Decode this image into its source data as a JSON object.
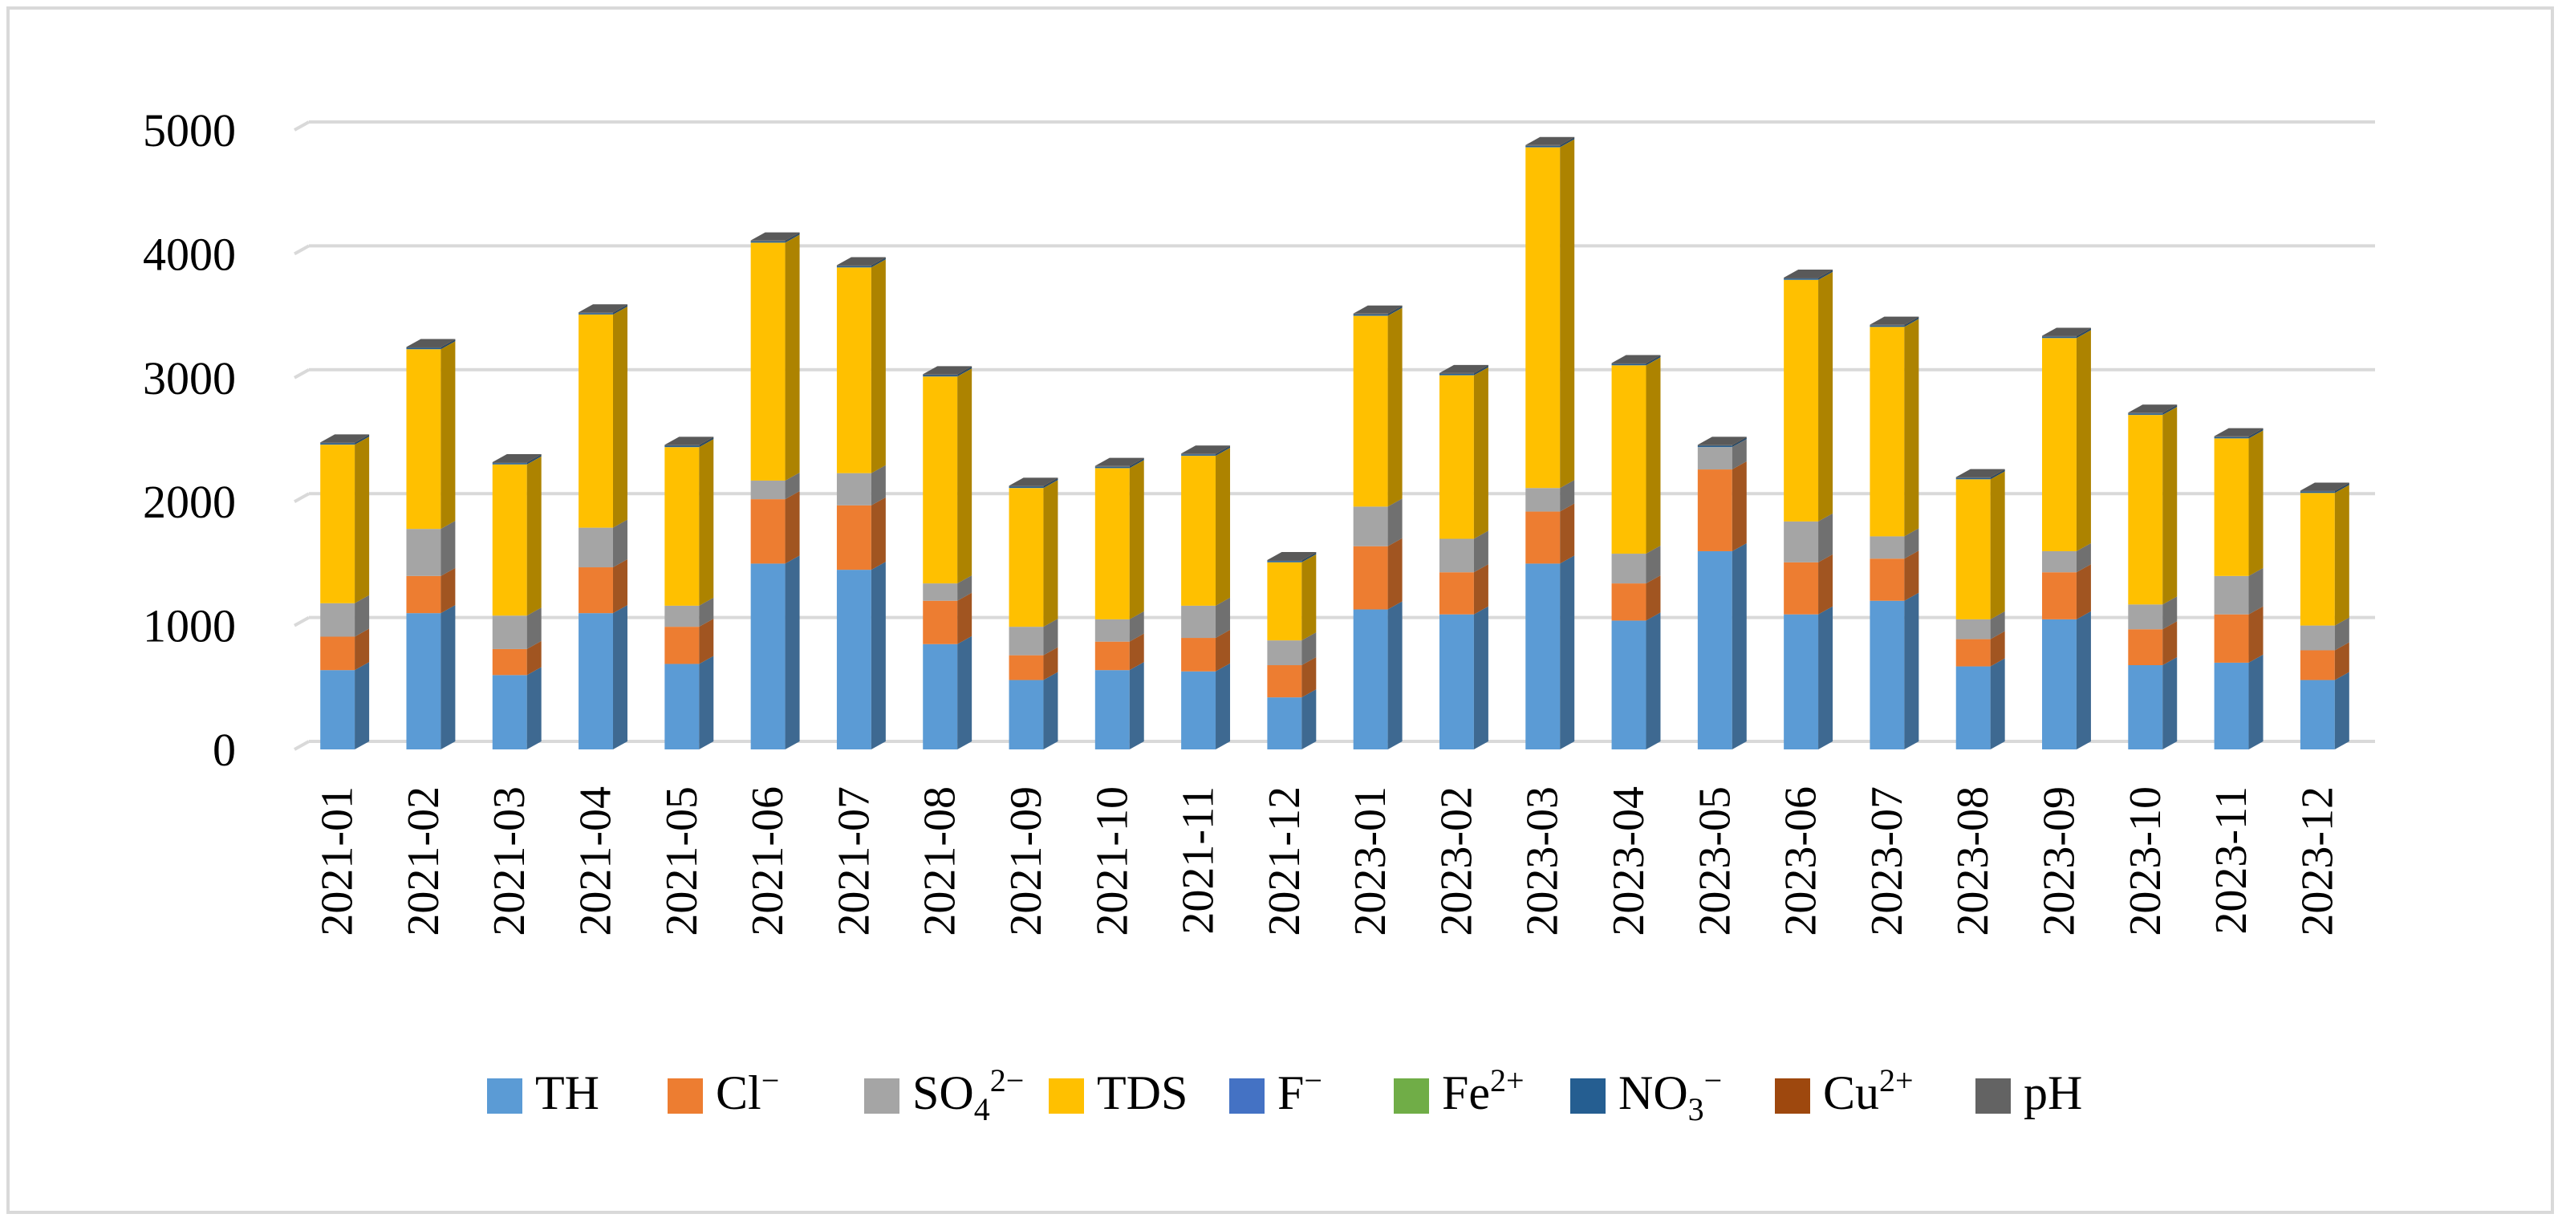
{
  "chart_data": {
    "type": "bar",
    "stacked": true,
    "style": "3d-column",
    "title": "",
    "xlabel": "",
    "ylabel": "",
    "ylim": [
      0,
      5000
    ],
    "yticks": [
      0,
      1000,
      2000,
      3000,
      4000,
      5000
    ],
    "ytick_labels": [
      "0",
      "1000",
      "2000",
      "3000",
      "4000",
      "5000"
    ],
    "grid": true,
    "legend_position": "bottom",
    "categories": [
      "2021-01",
      "2021-02",
      "2021-03",
      "2021-04",
      "2021-05",
      "2021-06",
      "2021-07",
      "2021-08",
      "2021-09",
      "2021-10",
      "2021-11",
      "2021-12",
      "2023-01",
      "2023-02",
      "2023-03",
      "2023-04",
      "2023-05",
      "2023-06",
      "2023-07",
      "2023-08",
      "2023-09",
      "2023-10",
      "2023-11",
      "2023-12"
    ],
    "series": [
      {
        "name": "TH",
        "label_base": "TH",
        "label_sup": "",
        "label_sub": "",
        "label_tail": "",
        "color": "#5b9bd5",
        "values": [
          640,
          1100,
          600,
          1100,
          690,
          1500,
          1450,
          850,
          560,
          640,
          630,
          420,
          1130,
          1090,
          1500,
          1040,
          1600,
          1090,
          1200,
          670,
          1050,
          680,
          700,
          560
        ]
      },
      {
        "name": "Cl⁻",
        "label_base": "Cl",
        "label_sup": "−",
        "label_sub": "",
        "label_tail": "",
        "color": "#ed7d31",
        "values": [
          270,
          300,
          210,
          370,
          300,
          520,
          520,
          350,
          200,
          230,
          270,
          260,
          510,
          340,
          420,
          300,
          660,
          420,
          340,
          220,
          380,
          290,
          390,
          240
        ]
      },
      {
        "name": "SO₄²⁻",
        "label_base": "SO",
        "label_sup": "",
        "label_sub": "4",
        "label_tail": "2−",
        "color": "#a5a5a5",
        "values": [
          270,
          380,
          270,
          320,
          170,
          150,
          260,
          140,
          230,
          180,
          260,
          200,
          320,
          270,
          190,
          240,
          180,
          330,
          180,
          160,
          170,
          200,
          310,
          200
        ]
      },
      {
        "name": "TDS",
        "label_base": "TDS",
        "label_sup": "",
        "label_sub": "",
        "label_tail": "",
        "color": "#ffc000",
        "values": [
          1280,
          1450,
          1220,
          1720,
          1280,
          1920,
          1660,
          1670,
          1120,
          1220,
          1210,
          630,
          1540,
          1320,
          2750,
          1520,
          0,
          1950,
          1690,
          1130,
          1720,
          1530,
          1110,
          1070
        ]
      },
      {
        "name": "F⁻",
        "label_base": "F",
        "label_sup": "−",
        "label_sub": "",
        "label_tail": "",
        "color": "#4472c4",
        "values": [
          1,
          1,
          1,
          1,
          1,
          1,
          1,
          1,
          1,
          1,
          1,
          1,
          1,
          1,
          1,
          1,
          1,
          1,
          1,
          1,
          1,
          1,
          1,
          1
        ]
      },
      {
        "name": "Fe²⁺",
        "label_base": "Fe",
        "label_sup": "2+",
        "label_sub": "",
        "label_tail": "",
        "color": "#70ad47",
        "values": [
          0.3,
          0.3,
          0.3,
          0.3,
          0.3,
          0.3,
          0.3,
          0.3,
          0.3,
          0.3,
          0.3,
          0.3,
          0.3,
          0.3,
          0.3,
          0.3,
          0.3,
          0.3,
          0.3,
          0.3,
          0.3,
          0.3,
          0.3,
          0.3
        ]
      },
      {
        "name": "NO₃⁻",
        "label_base": "NO",
        "label_sup": "",
        "label_sub": "3",
        "label_tail": "−",
        "color": "#255e91",
        "values": [
          10,
          10,
          10,
          10,
          10,
          10,
          10,
          10,
          10,
          10,
          10,
          10,
          10,
          10,
          10,
          10,
          10,
          10,
          10,
          10,
          10,
          10,
          10,
          10
        ]
      },
      {
        "name": "Cu²⁺",
        "label_base": "Cu",
        "label_sup": "2+",
        "label_sub": "",
        "label_tail": "",
        "color": "#9e480e",
        "values": [
          0.1,
          0.1,
          0.1,
          0.1,
          0.1,
          0.1,
          0.1,
          0.1,
          0.1,
          0.1,
          0.1,
          0.1,
          0.1,
          0.1,
          0.1,
          0.1,
          0.1,
          0.1,
          0.1,
          0.1,
          0.1,
          0.1,
          0.1,
          0.1
        ]
      },
      {
        "name": "pH",
        "label_base": "pH",
        "label_sup": "",
        "label_sub": "",
        "label_tail": "",
        "color": "#636363",
        "values": [
          7,
          7,
          7,
          7,
          7,
          7,
          7,
          7,
          7,
          7,
          7,
          7,
          7,
          7,
          7,
          7,
          7,
          7,
          7,
          7,
          7,
          7,
          7,
          7
        ]
      }
    ]
  }
}
